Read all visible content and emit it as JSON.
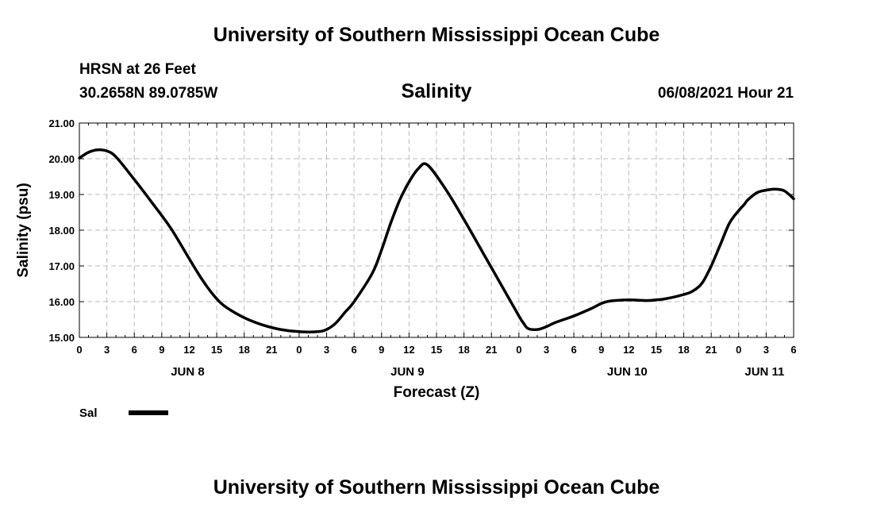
{
  "header": {
    "title_top": "University of Southern Mississippi Ocean Cube",
    "station": "HRSN at 26 Feet",
    "coords": "30.2658N  89.0785W",
    "variable": "Salinity",
    "datetime": "06/08/2021 Hour 21"
  },
  "footer": {
    "title_bottom": "University of Southern Mississippi Ocean Cube"
  },
  "chart_data": {
    "type": "line",
    "xlabel": "Forecast (Z)",
    "ylabel": "Salinity (psu)",
    "ylim": [
      15.0,
      21.0
    ],
    "xlim": [
      0,
      78
    ],
    "grid": true,
    "y_ticks": [
      "15.00",
      "16.00",
      "17.00",
      "18.00",
      "19.00",
      "20.00",
      "21.00"
    ],
    "x_tick_labels": [
      "0",
      "3",
      "6",
      "9",
      "12",
      "15",
      "18",
      "21",
      "0",
      "3",
      "6",
      "9",
      "12",
      "15",
      "18",
      "21",
      "0",
      "3",
      "6",
      "9",
      "12",
      "15",
      "18",
      "21",
      "0",
      "3",
      "6"
    ],
    "day_labels": [
      {
        "label": "JUN 8",
        "x": 12
      },
      {
        "label": "JUN 9",
        "x": 36
      },
      {
        "label": "JUN 10",
        "x": 60
      },
      {
        "label": "JUN 11",
        "x": 75
      }
    ],
    "legend": [
      {
        "label": "Sal",
        "color": "#000000"
      }
    ],
    "series": [
      {
        "name": "Sal",
        "color": "#000000",
        "x": [
          0,
          1,
          2,
          3,
          4,
          6,
          8,
          10,
          12,
          13,
          14,
          15,
          16,
          18,
          20,
          22,
          24,
          26,
          27,
          28,
          29,
          30,
          32,
          33,
          34,
          35,
          36,
          37,
          38,
          40,
          42,
          44,
          46,
          48,
          48.5,
          49,
          50,
          51,
          52,
          54,
          56,
          57,
          58,
          60,
          62,
          63,
          64,
          66,
          67,
          68,
          69,
          70,
          71,
          72,
          72.6,
          73,
          74,
          75,
          76,
          77,
          78
        ],
        "y": [
          20.02,
          20.18,
          20.25,
          20.22,
          20.05,
          19.42,
          18.75,
          18.05,
          17.2,
          16.78,
          16.4,
          16.08,
          15.85,
          15.55,
          15.35,
          15.22,
          15.16,
          15.16,
          15.22,
          15.4,
          15.7,
          16.0,
          16.8,
          17.45,
          18.2,
          18.85,
          19.35,
          19.72,
          19.83,
          19.15,
          18.3,
          17.4,
          16.5,
          15.6,
          15.4,
          15.25,
          15.22,
          15.3,
          15.42,
          15.6,
          15.82,
          15.95,
          16.02,
          16.05,
          16.03,
          16.05,
          16.08,
          16.2,
          16.3,
          16.52,
          17.0,
          17.6,
          18.2,
          18.55,
          18.72,
          18.85,
          19.05,
          19.12,
          19.15,
          19.1,
          18.88
        ]
      }
    ]
  }
}
